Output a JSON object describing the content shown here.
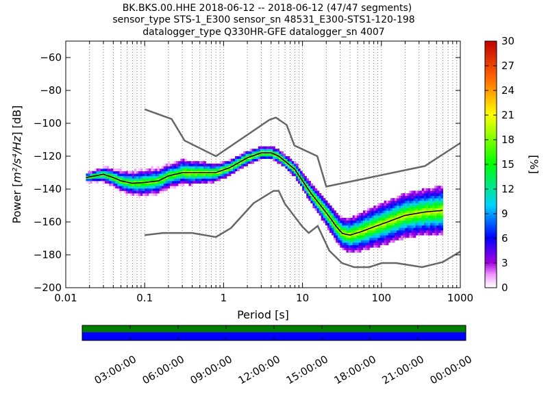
{
  "chart_data": {
    "type": "heatmap",
    "title_lines": [
      "BK.BKS.00.HHE   2018-06-12 -- 2018-06-12  (47/47 segments)",
      "sensor_type STS-1_E300 sensor_sn 48531_E300-STS1-120-198",
      "datalogger_type Q330HR-GFE datalogger_sn 4007"
    ],
    "xlabel": "Period [s]",
    "ylabel_prefix": "Power [",
    "ylabel_math": "m²/s⁴/Hz",
    "ylabel_suffix": "] [dB]",
    "xscale": "log",
    "xlim": [
      0.01,
      1000
    ],
    "ylim": [
      -200,
      -50
    ],
    "xticks": [
      {
        "v": 0.01,
        "label": "0.01"
      },
      {
        "v": 0.1,
        "label": "0.1"
      },
      {
        "v": 1,
        "label": "1"
      },
      {
        "v": 10,
        "label": "10"
      },
      {
        "v": 100,
        "label": "100"
      },
      {
        "v": 1000,
        "label": "1000"
      }
    ],
    "yticks": [
      {
        "v": -60,
        "label": "−60"
      },
      {
        "v": -80,
        "label": "−80"
      },
      {
        "v": -100,
        "label": "−100"
      },
      {
        "v": -120,
        "label": "−120"
      },
      {
        "v": -140,
        "label": "−140"
      },
      {
        "v": -160,
        "label": "−160"
      },
      {
        "v": -180,
        "label": "−180"
      },
      {
        "v": -200,
        "label": "−200"
      }
    ],
    "grid": "dotted vertical at log minor periods",
    "colorbar": {
      "label": "[%]",
      "range": [
        0,
        30
      ],
      "ticks": [
        {
          "v": 0,
          "label": "0"
        },
        {
          "v": 3,
          "label": "3"
        },
        {
          "v": 6,
          "label": "6"
        },
        {
          "v": 9,
          "label": "9"
        },
        {
          "v": 12,
          "label": "12"
        },
        {
          "v": 15,
          "label": "15"
        },
        {
          "v": 18,
          "label": "18"
        },
        {
          "v": 21,
          "label": "21"
        },
        {
          "v": 24,
          "label": "24"
        },
        {
          "v": 27,
          "label": "27"
        },
        {
          "v": 30,
          "label": "30"
        }
      ]
    },
    "nhnm": [
      [
        0.1,
        -168
      ],
      [
        0.17,
        -166.7
      ],
      [
        0.4,
        -166.7
      ],
      [
        0.8,
        -169.2
      ],
      [
        1.24,
        -163.7
      ],
      [
        2.4,
        -148.6
      ],
      [
        4.3,
        -141.1
      ],
      [
        5.0,
        -141.1
      ],
      [
        6.0,
        -149
      ],
      [
        10.0,
        -163
      ],
      [
        12.0,
        -166.7
      ],
      [
        15.6,
        -162.4
      ],
      [
        21.9,
        -177.5
      ],
      [
        31.6,
        -185
      ],
      [
        45.0,
        -187.5
      ],
      [
        70.0,
        -187.5
      ],
      [
        101,
        -185
      ],
      [
        154,
        -185
      ],
      [
        328,
        -187.5
      ],
      [
        600,
        -184.4
      ],
      [
        1000,
        -178
      ]
    ],
    "nlnm": [
      [
        0.1,
        -91.5
      ],
      [
        0.22,
        -97.4
      ],
      [
        0.32,
        -110.5
      ],
      [
        0.8,
        -120
      ],
      [
        3.8,
        -97.9
      ],
      [
        4.6,
        -96.5
      ],
      [
        6.3,
        -101
      ],
      [
        7.9,
        -113.5
      ],
      [
        15.4,
        -120
      ],
      [
        20,
        -138.5
      ],
      [
        354.8,
        -126
      ],
      [
        1000,
        -112
      ]
    ],
    "mode_curve": [
      [
        0.018,
        -133
      ],
      [
        0.03,
        -131
      ],
      [
        0.04,
        -133
      ],
      [
        0.05,
        -135
      ],
      [
        0.07,
        -136.5
      ],
      [
        0.1,
        -136
      ],
      [
        0.15,
        -135
      ],
      [
        0.2,
        -132
      ],
      [
        0.3,
        -130
      ],
      [
        0.5,
        -130
      ],
      [
        0.8,
        -130
      ],
      [
        1.2,
        -127
      ],
      [
        2,
        -121
      ],
      [
        3,
        -118
      ],
      [
        4,
        -118
      ],
      [
        5,
        -120
      ],
      [
        6,
        -123
      ],
      [
        8,
        -128
      ],
      [
        10,
        -135
      ],
      [
        13,
        -143
      ],
      [
        17,
        -150
      ],
      [
        22,
        -157
      ],
      [
        27,
        -163
      ],
      [
        32,
        -167
      ],
      [
        40,
        -168
      ],
      [
        55,
        -166
      ],
      [
        80,
        -163
      ],
      [
        120,
        -160
      ],
      [
        200,
        -156
      ],
      [
        350,
        -154
      ],
      [
        600,
        -153
      ]
    ],
    "spread": [
      [
        0.018,
        3
      ],
      [
        0.05,
        7
      ],
      [
        0.1,
        9
      ],
      [
        0.3,
        8
      ],
      [
        1,
        5
      ],
      [
        3,
        4
      ],
      [
        6,
        4
      ],
      [
        10,
        5
      ],
      [
        20,
        8
      ],
      [
        35,
        10
      ],
      [
        60,
        12
      ],
      [
        100,
        13
      ],
      [
        300,
        14
      ],
      [
        600,
        15
      ]
    ],
    "time_axis": {
      "ticks": [
        "03:00:00",
        "06:00:00",
        "09:00:00",
        "12:00:00",
        "15:00:00",
        "18:00:00",
        "21:00:00",
        "00:00:00"
      ]
    },
    "colors": {
      "noise_model": "#666666",
      "mode": "#000000",
      "data_availability": "#007c00",
      "used_segments": "#0000ff"
    }
  }
}
